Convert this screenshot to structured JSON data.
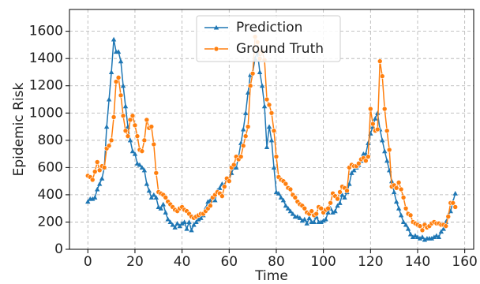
{
  "chart_data": {
    "type": "line",
    "x_label": "Time",
    "y_label": "Epidemic Risk",
    "x": [
      0,
      1,
      2,
      3,
      4,
      5,
      6,
      7,
      8,
      9,
      10,
      11,
      12,
      13,
      14,
      15,
      16,
      17,
      18,
      19,
      20,
      21,
      22,
      23,
      24,
      25,
      26,
      27,
      28,
      29,
      30,
      31,
      32,
      33,
      34,
      35,
      36,
      37,
      38,
      39,
      40,
      41,
      42,
      43,
      44,
      45,
      46,
      47,
      48,
      49,
      50,
      51,
      52,
      53,
      54,
      55,
      56,
      57,
      58,
      59,
      60,
      61,
      62,
      63,
      64,
      65,
      66,
      67,
      68,
      69,
      70,
      71,
      72,
      73,
      74,
      75,
      76,
      77,
      78,
      79,
      80,
      81,
      82,
      83,
      84,
      85,
      86,
      87,
      88,
      89,
      90,
      91,
      92,
      93,
      94,
      95,
      96,
      97,
      98,
      99,
      100,
      101,
      102,
      103,
      104,
      105,
      106,
      107,
      108,
      109,
      110,
      111,
      112,
      113,
      114,
      115,
      116,
      117,
      118,
      119,
      120,
      121,
      122,
      123,
      124,
      125,
      126,
      127,
      128,
      129,
      130,
      131,
      132,
      133,
      134,
      135,
      136,
      137,
      138,
      139,
      140,
      141,
      142,
      143,
      144,
      145,
      146,
      147,
      148,
      149,
      150,
      151,
      152,
      153,
      154,
      155,
      156
    ],
    "series": [
      {
        "name": "Prediction",
        "color": "#1f77b4",
        "marker": "triangle",
        "values": [
          350,
          370,
          370,
          380,
          440,
          480,
          520,
          600,
          900,
          1100,
          1300,
          1540,
          1450,
          1450,
          1380,
          1200,
          1050,
          900,
          800,
          720,
          700,
          630,
          620,
          600,
          580,
          480,
          430,
          380,
          400,
          380,
          310,
          300,
          330,
          270,
          220,
          200,
          180,
          160,
          190,
          170,
          190,
          200,
          150,
          200,
          140,
          180,
          200,
          220,
          230,
          250,
          300,
          350,
          360,
          380,
          360,
          430,
          450,
          480,
          470,
          520,
          510,
          560,
          600,
          600,
          680,
          780,
          880,
          1000,
          1150,
          1280,
          1300,
          1400,
          1450,
          1300,
          1200,
          1050,
          750,
          900,
          800,
          600,
          420,
          410,
          380,
          360,
          320,
          300,
          280,
          260,
          240,
          240,
          230,
          210,
          220,
          190,
          230,
          200,
          200,
          240,
          200,
          200,
          210,
          220,
          270,
          300,
          270,
          280,
          320,
          340,
          400,
          380,
          420,
          480,
          560,
          580,
          600,
          620,
          650,
          700,
          700,
          780,
          850,
          900,
          960,
          1000,
          880,
          800,
          720,
          650,
          580,
          500,
          420,
          350,
          300,
          250,
          200,
          180,
          150,
          110,
          90,
          100,
          90,
          80,
          90,
          70,
          80,
          80,
          80,
          90,
          100,
          90,
          130,
          150,
          200,
          250,
          280,
          350,
          410
        ]
      },
      {
        "name": "Ground Truth",
        "color": "#ff7f0e",
        "marker": "circle",
        "values": [
          540,
          530,
          510,
          570,
          640,
          580,
          610,
          600,
          740,
          760,
          800,
          970,
          1230,
          1260,
          1130,
          980,
          870,
          830,
          950,
          980,
          910,
          830,
          730,
          720,
          800,
          950,
          890,
          900,
          770,
          560,
          420,
          410,
          400,
          380,
          350,
          330,
          310,
          290,
          280,
          300,
          310,
          290,
          280,
          260,
          240,
          230,
          240,
          250,
          260,
          260,
          280,
          300,
          320,
          380,
          400,
          420,
          410,
          390,
          460,
          520,
          500,
          600,
          620,
          680,
          660,
          680,
          760,
          830,
          900,
          1200,
          1290,
          1560,
          1520,
          1400,
          1450,
          1390,
          1100,
          1060,
          1000,
          870,
          680,
          530,
          510,
          500,
          480,
          450,
          440,
          400,
          380,
          350,
          330,
          320,
          300,
          270,
          260,
          280,
          250,
          260,
          310,
          300,
          270,
          290,
          300,
          340,
          410,
          390,
          370,
          420,
          460,
          450,
          430,
          600,
          620,
          610,
          610,
          630,
          660,
          670,
          650,
          680,
          1030,
          920,
          870,
          880,
          1380,
          1270,
          1030,
          870,
          730,
          460,
          470,
          450,
          490,
          440,
          380,
          300,
          260,
          250,
          200,
          190,
          180,
          170,
          140,
          180,
          160,
          170,
          190,
          200,
          190,
          190,
          180,
          180,
          170,
          240,
          340,
          340,
          310
        ]
      }
    ],
    "xlim": [
      -7.8,
      163.8
    ],
    "ylim": [
      0,
      1760
    ],
    "xticks": [
      0,
      20,
      40,
      60,
      80,
      100,
      120,
      140,
      160
    ],
    "yticks": [
      0,
      200,
      400,
      600,
      800,
      1000,
      1200,
      1400,
      1600
    ],
    "grid": true,
    "legend": "upper center"
  }
}
